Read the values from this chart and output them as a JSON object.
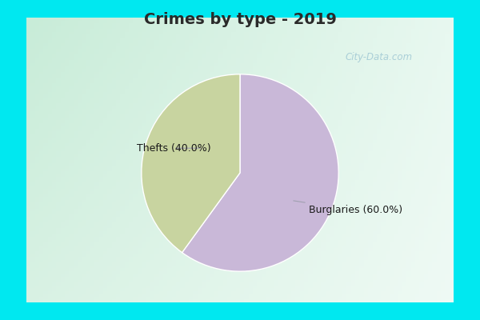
{
  "title": "Crimes by type - 2019",
  "slices": [
    {
      "label": "Burglaries (60.0%)",
      "value": 60.0,
      "color": "#c9b8d8"
    },
    {
      "label": "Thefts (40.0%)",
      "value": 40.0,
      "color": "#c8d4a0"
    }
  ],
  "start_angle": 90,
  "cyan_border": "#00e8f0",
  "border_thickness": 0.055,
  "title_fontsize": 14,
  "title_color": "#2a2a2a",
  "title_fontweight": "bold",
  "label_fontsize": 9,
  "label_color": "#1a1a1a",
  "watermark": "City-Data.com",
  "watermark_color": "#a0c8d4",
  "arrow_color": "#a0a0b0"
}
